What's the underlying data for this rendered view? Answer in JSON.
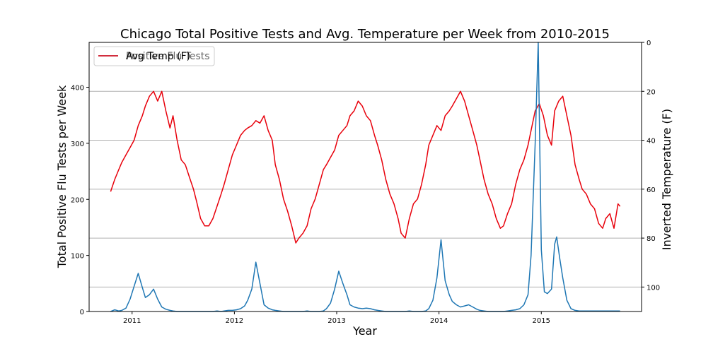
{
  "chart_data": {
    "type": "line",
    "title": "Chicago Total Positive Tests and Avg. Temperature per Week from 2010-2015",
    "xlabel": "Year",
    "ylabel_left": "Total Positive Flu Tests per Week",
    "ylabel_right": "Inverted Temperature (F)",
    "xlim": [
      2010.58,
      2015.98
    ],
    "xticks": [
      2011,
      2012,
      2013,
      2014,
      2015
    ],
    "xtick_labels": [
      "2011",
      "2012",
      "2013",
      "2014",
      "2015"
    ],
    "ylim_left": [
      0,
      480
    ],
    "yticks_left": [
      0,
      100,
      200,
      300,
      400
    ],
    "ylim_right": [
      0,
      110
    ],
    "right_axis_inverted": true,
    "yticks_right": [
      0,
      20,
      40,
      60,
      80,
      100
    ],
    "grid": "horizontal",
    "legend": {
      "position": "top-left",
      "entries": [
        "Avg Temp (F)",
        "Positive Flu Tests"
      ]
    },
    "series": [
      {
        "name": "Avg Temp (F)",
        "axis": "right",
        "color": "#e8000b",
        "points": [
          [
            2010.79,
            61
          ],
          [
            2010.83,
            56
          ],
          [
            2010.87,
            52
          ],
          [
            2010.9,
            49
          ],
          [
            2010.94,
            46
          ],
          [
            2010.98,
            43
          ],
          [
            2011.02,
            40
          ],
          [
            2011.06,
            34
          ],
          [
            2011.1,
            30
          ],
          [
            2011.13,
            26
          ],
          [
            2011.17,
            22
          ],
          [
            2011.21,
            20
          ],
          [
            2011.25,
            24
          ],
          [
            2011.29,
            20
          ],
          [
            2011.33,
            28
          ],
          [
            2011.37,
            35
          ],
          [
            2011.4,
            30
          ],
          [
            2011.44,
            40
          ],
          [
            2011.48,
            48
          ],
          [
            2011.52,
            50
          ],
          [
            2011.56,
            55
          ],
          [
            2011.6,
            60
          ],
          [
            2011.63,
            65
          ],
          [
            2011.67,
            72
          ],
          [
            2011.71,
            75
          ],
          [
            2011.75,
            75
          ],
          [
            2011.79,
            72
          ],
          [
            2011.83,
            67
          ],
          [
            2011.87,
            62
          ],
          [
            2011.9,
            58
          ],
          [
            2011.94,
            52
          ],
          [
            2011.98,
            46
          ],
          [
            2012.02,
            42
          ],
          [
            2012.06,
            38
          ],
          [
            2012.1,
            36
          ],
          [
            2012.13,
            35
          ],
          [
            2012.17,
            34
          ],
          [
            2012.21,
            32
          ],
          [
            2012.25,
            33
          ],
          [
            2012.29,
            30
          ],
          [
            2012.33,
            36
          ],
          [
            2012.37,
            40
          ],
          [
            2012.4,
            50
          ],
          [
            2012.44,
            56
          ],
          [
            2012.48,
            64
          ],
          [
            2012.52,
            69
          ],
          [
            2012.56,
            75
          ],
          [
            2012.6,
            82
          ],
          [
            2012.63,
            80
          ],
          [
            2012.67,
            78
          ],
          [
            2012.71,
            75
          ],
          [
            2012.75,
            68
          ],
          [
            2012.79,
            64
          ],
          [
            2012.83,
            58
          ],
          [
            2012.87,
            52
          ],
          [
            2012.9,
            50
          ],
          [
            2012.94,
            47
          ],
          [
            2012.98,
            44
          ],
          [
            2013.02,
            38
          ],
          [
            2013.06,
            36
          ],
          [
            2013.1,
            34
          ],
          [
            2013.13,
            30
          ],
          [
            2013.17,
            28
          ],
          [
            2013.21,
            24
          ],
          [
            2013.25,
            26
          ],
          [
            2013.29,
            30
          ],
          [
            2013.33,
            32
          ],
          [
            2013.37,
            38
          ],
          [
            2013.4,
            42
          ],
          [
            2013.44,
            48
          ],
          [
            2013.48,
            56
          ],
          [
            2013.52,
            62
          ],
          [
            2013.56,
            66
          ],
          [
            2013.6,
            72
          ],
          [
            2013.63,
            78
          ],
          [
            2013.67,
            80
          ],
          [
            2013.71,
            72
          ],
          [
            2013.75,
            66
          ],
          [
            2013.79,
            64
          ],
          [
            2013.83,
            58
          ],
          [
            2013.87,
            50
          ],
          [
            2013.9,
            42
          ],
          [
            2013.94,
            38
          ],
          [
            2013.98,
            34
          ],
          [
            2014.02,
            36
          ],
          [
            2014.06,
            30
          ],
          [
            2014.1,
            28
          ],
          [
            2014.13,
            26
          ],
          [
            2014.17,
            23
          ],
          [
            2014.21,
            20
          ],
          [
            2014.25,
            24
          ],
          [
            2014.29,
            30
          ],
          [
            2014.33,
            36
          ],
          [
            2014.37,
            42
          ],
          [
            2014.4,
            48
          ],
          [
            2014.44,
            56
          ],
          [
            2014.48,
            62
          ],
          [
            2014.52,
            66
          ],
          [
            2014.56,
            72
          ],
          [
            2014.6,
            76
          ],
          [
            2014.63,
            75
          ],
          [
            2014.67,
            70
          ],
          [
            2014.71,
            66
          ],
          [
            2014.75,
            58
          ],
          [
            2014.79,
            52
          ],
          [
            2014.83,
            48
          ],
          [
            2014.87,
            42
          ],
          [
            2014.9,
            36
          ],
          [
            2014.94,
            28
          ],
          [
            2014.98,
            25
          ],
          [
            2015.02,
            30
          ],
          [
            2015.06,
            38
          ],
          [
            2015.1,
            42
          ],
          [
            2015.13,
            28
          ],
          [
            2015.17,
            24
          ],
          [
            2015.21,
            22
          ],
          [
            2015.25,
            30
          ],
          [
            2015.29,
            38
          ],
          [
            2015.33,
            50
          ],
          [
            2015.37,
            56
          ],
          [
            2015.4,
            60
          ],
          [
            2015.44,
            62
          ],
          [
            2015.48,
            66
          ],
          [
            2015.52,
            68
          ],
          [
            2015.56,
            74
          ],
          [
            2015.6,
            76
          ],
          [
            2015.63,
            72
          ],
          [
            2015.67,
            70
          ],
          [
            2015.71,
            76
          ],
          [
            2015.75,
            66
          ],
          [
            2015.77,
            67
          ]
        ]
      },
      {
        "name": "Positive Flu Tests",
        "axis": "left",
        "color": "#1f77b4",
        "points": [
          [
            2010.79,
            0
          ],
          [
            2010.83,
            3
          ],
          [
            2010.87,
            1
          ],
          [
            2010.9,
            2
          ],
          [
            2010.94,
            6
          ],
          [
            2010.98,
            22
          ],
          [
            2011.02,
            45
          ],
          [
            2011.06,
            68
          ],
          [
            2011.1,
            43
          ],
          [
            2011.13,
            25
          ],
          [
            2011.17,
            30
          ],
          [
            2011.21,
            40
          ],
          [
            2011.25,
            22
          ],
          [
            2011.29,
            8
          ],
          [
            2011.33,
            4
          ],
          [
            2011.37,
            2
          ],
          [
            2011.4,
            1
          ],
          [
            2011.44,
            0
          ],
          [
            2011.48,
            0
          ],
          [
            2011.52,
            0
          ],
          [
            2011.56,
            0
          ],
          [
            2011.6,
            0
          ],
          [
            2011.63,
            0
          ],
          [
            2011.67,
            0
          ],
          [
            2011.71,
            0
          ],
          [
            2011.75,
            0
          ],
          [
            2011.79,
            0
          ],
          [
            2011.83,
            1
          ],
          [
            2011.87,
            0
          ],
          [
            2011.9,
            1
          ],
          [
            2011.94,
            2
          ],
          [
            2011.98,
            2
          ],
          [
            2012.02,
            3
          ],
          [
            2012.06,
            5
          ],
          [
            2012.1,
            10
          ],
          [
            2012.13,
            20
          ],
          [
            2012.17,
            40
          ],
          [
            2012.21,
            88
          ],
          [
            2012.25,
            50
          ],
          [
            2012.29,
            12
          ],
          [
            2012.33,
            6
          ],
          [
            2012.37,
            3
          ],
          [
            2012.4,
            2
          ],
          [
            2012.44,
            1
          ],
          [
            2012.48,
            0
          ],
          [
            2012.52,
            0
          ],
          [
            2012.56,
            0
          ],
          [
            2012.6,
            0
          ],
          [
            2012.63,
            0
          ],
          [
            2012.67,
            0
          ],
          [
            2012.71,
            1
          ],
          [
            2012.75,
            0
          ],
          [
            2012.79,
            0
          ],
          [
            2012.83,
            0
          ],
          [
            2012.87,
            1
          ],
          [
            2012.9,
            5
          ],
          [
            2012.94,
            15
          ],
          [
            2012.98,
            40
          ],
          [
            2013.02,
            72
          ],
          [
            2013.06,
            50
          ],
          [
            2013.1,
            30
          ],
          [
            2013.13,
            12
          ],
          [
            2013.17,
            8
          ],
          [
            2013.21,
            6
          ],
          [
            2013.25,
            5
          ],
          [
            2013.29,
            6
          ],
          [
            2013.33,
            5
          ],
          [
            2013.37,
            3
          ],
          [
            2013.4,
            2
          ],
          [
            2013.44,
            1
          ],
          [
            2013.48,
            0
          ],
          [
            2013.52,
            0
          ],
          [
            2013.56,
            0
          ],
          [
            2013.6,
            0
          ],
          [
            2013.63,
            0
          ],
          [
            2013.67,
            0
          ],
          [
            2013.71,
            1
          ],
          [
            2013.75,
            0
          ],
          [
            2013.79,
            0
          ],
          [
            2013.83,
            0
          ],
          [
            2013.87,
            1
          ],
          [
            2013.9,
            5
          ],
          [
            2013.94,
            20
          ],
          [
            2013.98,
            60
          ],
          [
            2014.02,
            128
          ],
          [
            2014.06,
            55
          ],
          [
            2014.1,
            30
          ],
          [
            2014.13,
            18
          ],
          [
            2014.17,
            12
          ],
          [
            2014.21,
            8
          ],
          [
            2014.25,
            10
          ],
          [
            2014.29,
            12
          ],
          [
            2014.33,
            8
          ],
          [
            2014.37,
            4
          ],
          [
            2014.4,
            2
          ],
          [
            2014.44,
            1
          ],
          [
            2014.48,
            0
          ],
          [
            2014.52,
            0
          ],
          [
            2014.56,
            0
          ],
          [
            2014.6,
            0
          ],
          [
            2014.63,
            0
          ],
          [
            2014.67,
            1
          ],
          [
            2014.71,
            2
          ],
          [
            2014.75,
            3
          ],
          [
            2014.79,
            5
          ],
          [
            2014.83,
            12
          ],
          [
            2014.87,
            30
          ],
          [
            2014.9,
            100
          ],
          [
            2014.94,
            300
          ],
          [
            2014.97,
            480
          ],
          [
            2015.0,
            110
          ],
          [
            2015.03,
            35
          ],
          [
            2015.06,
            32
          ],
          [
            2015.1,
            40
          ],
          [
            2015.13,
            120
          ],
          [
            2015.15,
            133
          ],
          [
            2015.18,
            95
          ],
          [
            2015.21,
            60
          ],
          [
            2015.25,
            20
          ],
          [
            2015.29,
            5
          ],
          [
            2015.33,
            2
          ],
          [
            2015.37,
            1
          ],
          [
            2015.4,
            1
          ],
          [
            2015.44,
            1
          ],
          [
            2015.48,
            1
          ],
          [
            2015.52,
            1
          ],
          [
            2015.56,
            1
          ],
          [
            2015.6,
            1
          ],
          [
            2015.63,
            1
          ],
          [
            2015.67,
            1
          ],
          [
            2015.71,
            1
          ],
          [
            2015.75,
            1
          ],
          [
            2015.77,
            1
          ]
        ]
      }
    ]
  }
}
